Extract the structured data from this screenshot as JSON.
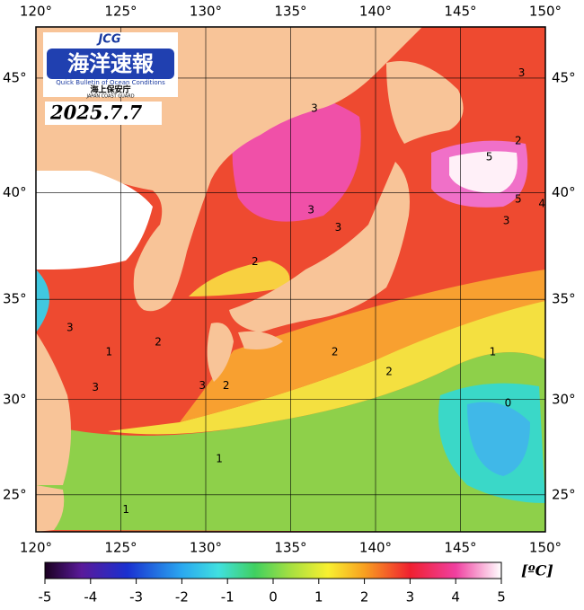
{
  "map": {
    "logo": {
      "mark": "JCG",
      "title": "海洋速報",
      "subtitle": "Quick Bulletin of Ocean Conditions",
      "agency": "海上保安庁",
      "agency_en": "JAPAN COAST GUARD"
    },
    "date": "2025.7.7",
    "lonlim": [
      120,
      150
    ],
    "latlim": [
      23,
      47.1
    ],
    "lonticks": [
      {
        "value": 120,
        "label": "120°"
      },
      {
        "value": 125,
        "label": "125°"
      },
      {
        "value": 130,
        "label": "130°"
      },
      {
        "value": 135,
        "label": "135°"
      },
      {
        "value": 140,
        "label": "140°"
      },
      {
        "value": 145,
        "label": "145°"
      },
      {
        "value": 150,
        "label": "150°"
      }
    ],
    "latticks": [
      {
        "value": 25,
        "label": "25°"
      },
      {
        "value": 30,
        "label": "30°"
      },
      {
        "value": 35,
        "label": "35°"
      },
      {
        "value": 40,
        "label": "40°"
      },
      {
        "value": 45,
        "label": "45°"
      }
    ],
    "contour_labels": [
      {
        "value": 3,
        "lon": 136.4,
        "lat": 43.7
      },
      {
        "value": 2,
        "lon": 148.4,
        "lat": 42.3
      },
      {
        "value": 5,
        "lon": 146.7,
        "lat": 41.6
      },
      {
        "value": 5,
        "lon": 148.4,
        "lat": 39.7
      },
      {
        "value": 4,
        "lon": 149.8,
        "lat": 39.5
      },
      {
        "value": 3,
        "lon": 147.7,
        "lat": 38.7
      },
      {
        "value": 3,
        "lon": 148.6,
        "lat": 45.2
      },
      {
        "value": 3,
        "lon": 136.2,
        "lat": 39.2
      },
      {
        "value": 3,
        "lon": 137.8,
        "lat": 38.4
      },
      {
        "value": 2,
        "lon": 132.9,
        "lat": 36.8
      },
      {
        "value": 3,
        "lon": 122.0,
        "lat": 33.6
      },
      {
        "value": 1,
        "lon": 124.3,
        "lat": 32.4
      },
      {
        "value": 2,
        "lon": 127.2,
        "lat": 32.9
      },
      {
        "value": 3,
        "lon": 123.5,
        "lat": 30.6
      },
      {
        "value": 3,
        "lon": 129.8,
        "lat": 30.7
      },
      {
        "value": 2,
        "lon": 131.2,
        "lat": 30.7
      },
      {
        "value": 2,
        "lon": 137.6,
        "lat": 32.4
      },
      {
        "value": 2,
        "lon": 140.8,
        "lat": 31.4
      },
      {
        "value": 1,
        "lon": 146.9,
        "lat": 32.4
      },
      {
        "value": 0,
        "lon": 147.8,
        "lat": 29.8
      },
      {
        "value": 1,
        "lon": 130.8,
        "lat": 26.9
      },
      {
        "value": 1,
        "lon": 125.3,
        "lat": 24.2
      }
    ],
    "colorbar": {
      "lim": [
        -5,
        5
      ],
      "ticks": [
        -5,
        -4,
        -3,
        -2,
        -1,
        0,
        1,
        2,
        3,
        4,
        5
      ],
      "unit": "[ºC]"
    }
  }
}
